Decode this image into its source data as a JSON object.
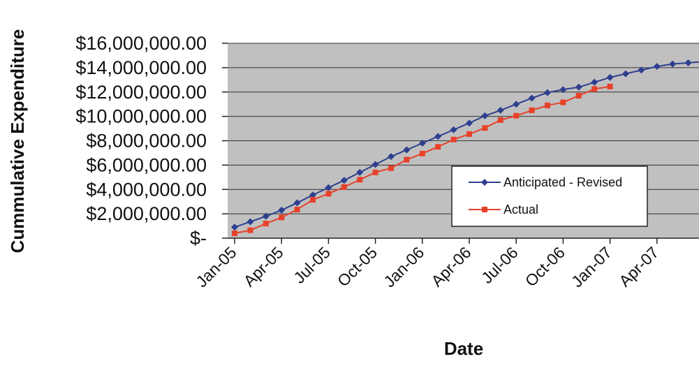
{
  "chart_data": {
    "type": "line",
    "title": "",
    "xlabel": "Date",
    "ylabel": "Cummulative Expenditure",
    "y_tick_labels": [
      "$-",
      "$2,000,000.00",
      "$4,000,000.00",
      "$6,000,000.00",
      "$8,000,000.00",
      "$10,000,000.00",
      "$12,000,000.00",
      "$14,000,000.00",
      "$16,000,000.00"
    ],
    "y_tick_values": [
      0,
      2000000,
      4000000,
      6000000,
      8000000,
      10000000,
      12000000,
      14000000,
      16000000
    ],
    "ylim": [
      0,
      16000000
    ],
    "x_tick_labels": [
      "Jan-05",
      "Apr-05",
      "Jul-05",
      "Oct-05",
      "Jan-06",
      "Apr-06",
      "Jul-06",
      "Oct-06",
      "Jan-07",
      "Apr-07"
    ],
    "x_tick_dates": [
      "2005-01",
      "2005-04",
      "2005-07",
      "2005-10",
      "2006-01",
      "2006-04",
      "2006-07",
      "2006-10",
      "2007-01",
      "2007-04"
    ],
    "xlim": [
      "2005-01",
      "2007-07"
    ],
    "grid": "horizontal",
    "plot_background": "#c0c0c0",
    "legend_position": "inside-right",
    "series": [
      {
        "name": "Anticipated - Revised",
        "color": "#2e3f8f",
        "marker": "diamond",
        "x": [
          "2005-01",
          "2005-02",
          "2005-03",
          "2005-04",
          "2005-05",
          "2005-06",
          "2005-07",
          "2005-08",
          "2005-09",
          "2005-10",
          "2005-11",
          "2005-12",
          "2006-01",
          "2006-02",
          "2006-03",
          "2006-04",
          "2006-05",
          "2006-06",
          "2006-07",
          "2006-08",
          "2006-09",
          "2006-10",
          "2006-11",
          "2006-12",
          "2007-01",
          "2007-02",
          "2007-03",
          "2007-04",
          "2007-05",
          "2007-06",
          "2007-07"
        ],
        "values": [
          900000,
          1350000,
          1800000,
          2300000,
          2900000,
          3550000,
          4150000,
          4750000,
          5400000,
          6050000,
          6700000,
          7250000,
          7800000,
          8350000,
          8900000,
          9450000,
          10050000,
          10500000,
          11000000,
          11500000,
          11950000,
          12200000,
          12400000,
          12800000,
          13200000,
          13500000,
          13800000,
          14100000,
          14300000,
          14400000,
          14500000
        ]
      },
      {
        "name": "Actual",
        "color": "#e8412a",
        "marker": "square",
        "x": [
          "2005-01",
          "2005-02",
          "2005-03",
          "2005-04",
          "2005-05",
          "2005-06",
          "2005-07",
          "2005-08",
          "2005-09",
          "2005-10",
          "2005-11",
          "2005-12",
          "2006-01",
          "2006-02",
          "2006-03",
          "2006-04",
          "2006-05",
          "2006-06",
          "2006-07",
          "2006-08",
          "2006-09",
          "2006-10",
          "2006-11",
          "2006-12",
          "2007-01"
        ],
        "values": [
          400000,
          650000,
          1200000,
          1700000,
          2350000,
          3150000,
          3650000,
          4200000,
          4800000,
          5400000,
          5750000,
          6450000,
          6950000,
          7500000,
          8100000,
          8550000,
          9050000,
          9700000,
          10050000,
          10500000,
          10900000,
          11150000,
          11700000,
          12250000,
          12450000
        ]
      }
    ]
  }
}
